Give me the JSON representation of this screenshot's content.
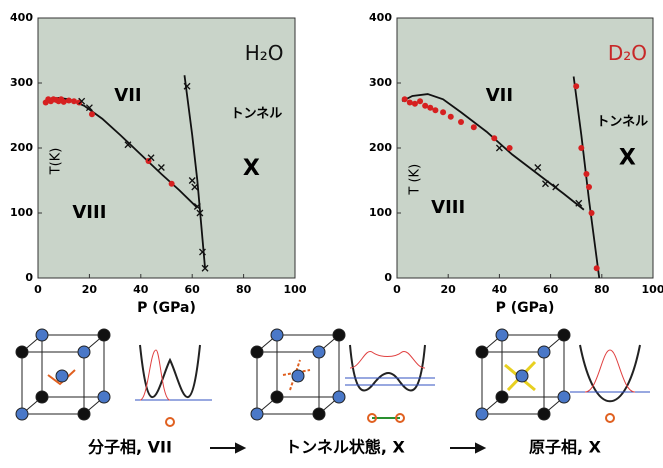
{
  "chart_data": [
    {
      "type": "scatter",
      "title": "H₂O",
      "title_color": "#111",
      "xlabel": "P (GPa)",
      "ylabel": "T(K)",
      "annotations": [
        "VII",
        "VIII",
        "X",
        "トンネル"
      ],
      "background": "#c9d4c9",
      "xlim": [
        0,
        100
      ],
      "ylim": [
        0,
        400
      ],
      "xticks": [
        0,
        20,
        40,
        60,
        80,
        100
      ],
      "yticks": [
        0,
        100,
        200,
        300,
        400
      ],
      "series": [
        {
          "marker": "line",
          "color": "#111",
          "x": [
            2,
            5,
            8,
            12,
            18,
            25,
            32,
            40,
            48,
            55,
            62
          ],
          "values": [
            270,
            275,
            277,
            275,
            265,
            245,
            220,
            190,
            160,
            135,
            108
          ]
        },
        {
          "marker": "line",
          "color": "#111",
          "x": [
            57,
            60,
            62,
            64,
            65
          ],
          "values": [
            312,
            220,
            150,
            60,
            15
          ]
        },
        {
          "marker": "dot",
          "color": "#d62020",
          "x": [
            3,
            4,
            5,
            6,
            7,
            8,
            9,
            10,
            12,
            14,
            16,
            21,
            43,
            52
          ],
          "values": [
            270,
            275,
            272,
            275,
            274,
            272,
            275,
            271,
            273,
            272,
            270,
            252,
            180,
            145
          ]
        },
        {
          "marker": "cross",
          "color": "#111",
          "x": [
            17,
            20,
            35,
            44,
            48,
            58,
            60,
            61,
            62,
            63,
            64,
            65
          ],
          "values": [
            272,
            262,
            205,
            185,
            170,
            295,
            150,
            140,
            110,
            100,
            40,
            15
          ]
        }
      ]
    },
    {
      "type": "scatter",
      "title": "D₂O",
      "title_color": "#c82828",
      "xlabel": "P (GPa)",
      "ylabel": "T (K)",
      "annotations": [
        "VII",
        "VIII",
        "X",
        "トンネル"
      ],
      "background": "#c9d4c9",
      "xlim": [
        0,
        100
      ],
      "ylim": [
        0,
        400
      ],
      "xticks": [
        0,
        20,
        40,
        60,
        80,
        100
      ],
      "yticks": [
        0,
        100,
        200,
        300,
        400
      ],
      "series": [
        {
          "marker": "line",
          "color": "#111",
          "x": [
            2,
            6,
            12,
            18,
            25,
            35,
            45,
            55,
            65,
            73
          ],
          "values": [
            272,
            280,
            283,
            275,
            255,
            225,
            190,
            160,
            130,
            105
          ]
        },
        {
          "marker": "line",
          "color": "#111",
          "x": [
            69,
            72,
            75,
            77,
            79
          ],
          "values": [
            310,
            220,
            120,
            60,
            0
          ]
        },
        {
          "marker": "dot",
          "color": "#d62020",
          "x": [
            3,
            5,
            7,
            9,
            11,
            13,
            15,
            18,
            21,
            25,
            30,
            38,
            44,
            70,
            72,
            74,
            75,
            76,
            78
          ],
          "values": [
            275,
            270,
            268,
            272,
            265,
            262,
            258,
            255,
            248,
            240,
            232,
            215,
            200,
            295,
            200,
            160,
            140,
            100,
            15
          ]
        },
        {
          "marker": "cross",
          "color": "#111",
          "x": [
            40,
            55,
            58,
            62,
            71
          ],
          "values": [
            200,
            170,
            145,
            140,
            115
          ]
        }
      ]
    }
  ],
  "scheme": {
    "labels": [
      "分子相, VII",
      "トンネル状態, X",
      "原子相, X"
    ]
  }
}
